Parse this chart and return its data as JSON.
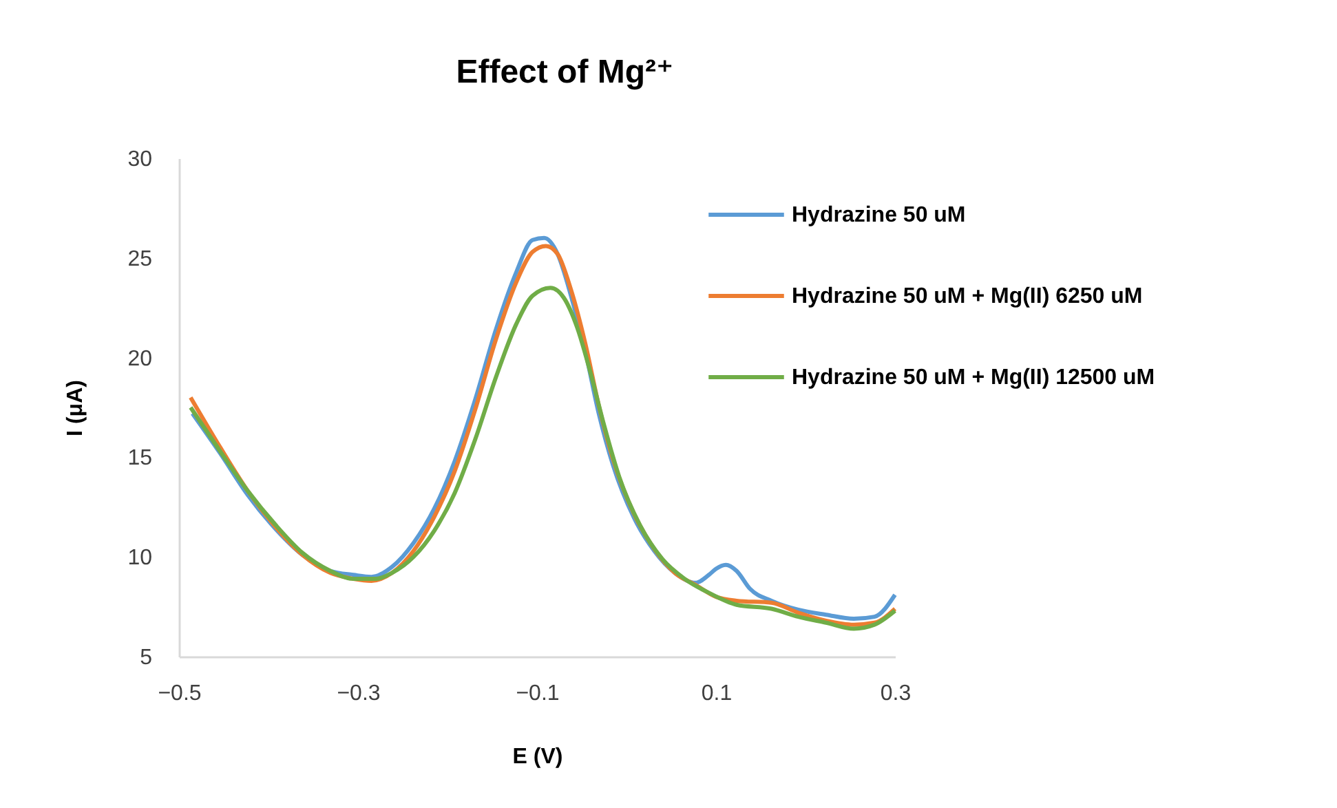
{
  "chart_data": {
    "type": "line",
    "title": "Effect of Mg²⁺",
    "xlabel": "E (V)",
    "ylabel": "I (μA)",
    "xlim": [
      -0.5,
      0.3
    ],
    "xticks": [
      -0.5,
      -0.3,
      -0.1,
      0.1,
      0.3
    ],
    "ylim": [
      5,
      30
    ],
    "yticks": [
      5,
      10,
      15,
      20,
      25,
      30
    ],
    "grid": false,
    "legend": "top right",
    "line_style": "solid",
    "marker": "none",
    "series": [
      {
        "name": "Hydrazine 50 uM",
        "color": "#5b9bd5",
        "x": [
          -0.485,
          -0.454,
          -0.423,
          -0.392,
          -0.362,
          -0.331,
          -0.305,
          -0.285,
          -0.262,
          -0.238,
          -0.215,
          -0.192,
          -0.169,
          -0.146,
          -0.123,
          -0.105,
          -0.092,
          -0.077,
          -0.062,
          -0.046,
          -0.031,
          -0.015,
          0.008,
          0.031,
          0.054,
          0.077,
          0.092,
          0.1,
          0.111,
          0.123,
          0.138,
          0.162,
          0.192,
          0.223,
          0.254,
          0.277,
          0.3
        ],
        "values": [
          17.2,
          15.2,
          13.1,
          11.4,
          10.1,
          9.3,
          9.1,
          9.0,
          9.5,
          10.7,
          12.4,
          14.8,
          17.9,
          21.4,
          24.3,
          25.9,
          26.0,
          25.2,
          23.1,
          20.3,
          17.2,
          14.6,
          12.0,
          10.3,
          9.2,
          8.7,
          9.1,
          9.4,
          9.6,
          9.3,
          8.4,
          7.8,
          7.35,
          7.1,
          6.9,
          7.0,
          8.1
        ]
      },
      {
        "name": "Hydrazine 50 uM + Mg(II) 6250 uM",
        "color": "#ed7d31",
        "x": [
          -0.487,
          -0.454,
          -0.423,
          -0.392,
          -0.362,
          -0.331,
          -0.305,
          -0.285,
          -0.262,
          -0.238,
          -0.215,
          -0.192,
          -0.169,
          -0.146,
          -0.123,
          -0.105,
          -0.09,
          -0.077,
          -0.062,
          -0.046,
          -0.031,
          -0.015,
          0.008,
          0.031,
          0.054,
          0.077,
          0.1,
          0.123,
          0.162,
          0.192,
          0.223,
          0.254,
          0.277,
          0.3
        ],
        "values": [
          18.0,
          15.5,
          13.3,
          11.5,
          10.1,
          9.2,
          8.9,
          8.8,
          9.2,
          10.3,
          12.0,
          14.3,
          17.4,
          20.9,
          23.8,
          25.3,
          25.6,
          25.2,
          23.4,
          20.7,
          17.6,
          14.9,
          12.2,
          10.4,
          9.2,
          8.6,
          8.0,
          7.8,
          7.7,
          7.2,
          6.8,
          6.6,
          6.7,
          7.4
        ]
      },
      {
        "name": "Hydrazine 50 uM + Mg(II) 12500 uM",
        "color": "#70ad47",
        "x": [
          -0.487,
          -0.454,
          -0.423,
          -0.392,
          -0.362,
          -0.331,
          -0.305,
          -0.28,
          -0.262,
          -0.238,
          -0.215,
          -0.192,
          -0.169,
          -0.146,
          -0.123,
          -0.105,
          -0.085,
          -0.07,
          -0.055,
          -0.04,
          -0.025,
          -0.008,
          0.015,
          0.04,
          0.065,
          0.092,
          0.123,
          0.162,
          0.192,
          0.223,
          0.254,
          0.277,
          0.3
        ],
        "values": [
          17.5,
          15.3,
          13.3,
          11.6,
          10.2,
          9.3,
          8.9,
          8.9,
          9.2,
          10.0,
          11.3,
          13.2,
          15.9,
          19.0,
          21.7,
          23.1,
          23.5,
          23.0,
          21.5,
          19.2,
          16.6,
          14.0,
          11.6,
          9.9,
          8.9,
          8.2,
          7.6,
          7.4,
          7.0,
          6.7,
          6.4,
          6.6,
          7.3
        ]
      }
    ]
  }
}
